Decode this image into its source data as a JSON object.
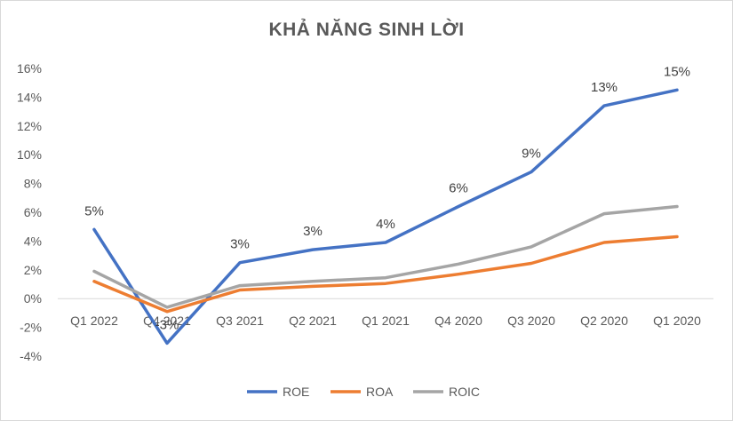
{
  "chart_data": {
    "type": "line",
    "title": "KHẢ NĂNG SINH LỜI",
    "categories": [
      "Q1 2022",
      "Q4 2021",
      "Q3 2021",
      "Q2 2021",
      "Q1 2021",
      "Q4 2020",
      "Q3 2020",
      "Q2 2020",
      "Q1 2020"
    ],
    "ylim": [
      -4,
      16
    ],
    "yticks": [
      -4,
      -2,
      0,
      2,
      4,
      6,
      8,
      10,
      12,
      14,
      16
    ],
    "ytick_labels": [
      "-4%",
      "-2%",
      "0%",
      "2%",
      "4%",
      "6%",
      "8%",
      "10%",
      "12%",
      "14%",
      "16%"
    ],
    "unit": "%",
    "grid": false,
    "legend": "bottom",
    "series": [
      {
        "name": "ROE",
        "color": "#4472C4",
        "values": [
          4.8,
          -3.1,
          2.5,
          3.4,
          3.9,
          6.4,
          8.8,
          13.4,
          14.5
        ],
        "data_labels": [
          "5%",
          "-3%",
          "3%",
          "3%",
          "4%",
          "6%",
          "9%",
          "13%",
          "15%"
        ]
      },
      {
        "name": "ROA",
        "color": "#ED7D31",
        "values": [
          1.2,
          -0.9,
          0.6,
          0.85,
          1.05,
          1.7,
          2.45,
          3.9,
          4.3
        ]
      },
      {
        "name": "ROIC",
        "color": "#A5A5A5",
        "values": [
          1.9,
          -0.6,
          0.9,
          1.2,
          1.45,
          2.4,
          3.6,
          5.9,
          6.4
        ]
      }
    ]
  }
}
